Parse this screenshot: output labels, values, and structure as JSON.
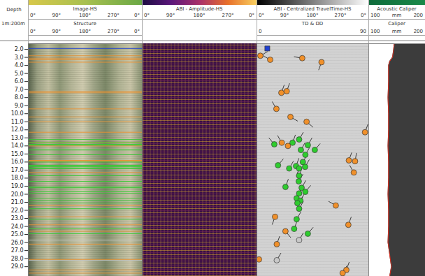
{
  "chart_data": {
    "type": "well_log",
    "depth_label": "Depth",
    "scale_label": "1m:200m",
    "ylim": [
      1.3,
      30.2
    ],
    "yticks": [
      {
        "value": 2,
        "label": "2.0"
      },
      {
        "value": 3,
        "label": "3.0"
      },
      {
        "value": 4,
        "label": "4.0"
      },
      {
        "value": 5,
        "label": "5.0"
      },
      {
        "value": 6,
        "label": "6.0"
      },
      {
        "value": 7,
        "label": "7.0"
      },
      {
        "value": 8,
        "label": "8.0"
      },
      {
        "value": 9,
        "label": "9.0"
      },
      {
        "value": 10,
        "label": "10.0"
      },
      {
        "value": 11,
        "label": "11.0"
      },
      {
        "value": 12,
        "label": "12.0"
      },
      {
        "value": 13,
        "label": "13.0"
      },
      {
        "value": 14,
        "label": "14.0"
      },
      {
        "value": 15,
        "label": "15.0"
      },
      {
        "value": 16,
        "label": "16.0"
      },
      {
        "value": 17,
        "label": "17.0"
      },
      {
        "value": 18,
        "label": "18.0"
      },
      {
        "value": 19,
        "label": "19.0"
      },
      {
        "value": 20,
        "label": "20.0"
      },
      {
        "value": 21,
        "label": "21.0"
      },
      {
        "value": 22,
        "label": "22.0"
      },
      {
        "value": 23,
        "label": "23.0"
      },
      {
        "value": 24,
        "label": "24.0"
      },
      {
        "value": 25,
        "label": "25.0"
      },
      {
        "value": 26,
        "label": "26.0"
      },
      {
        "value": 27,
        "label": "27.0"
      },
      {
        "value": 28,
        "label": "28.0"
      },
      {
        "value": 29,
        "label": "29.0"
      }
    ],
    "tracks": [
      {
        "title": "Image-HS",
        "xlim": [
          0,
          360
        ],
        "xticks": [
          {
            "value": 0,
            "label": "0°"
          },
          {
            "value": 90,
            "label": "90°"
          },
          {
            "value": 180,
            "label": "180°"
          },
          {
            "value": 270,
            "label": "270°"
          },
          {
            "value": 360,
            "label": "0°"
          }
        ],
        "subtitle": "Structure",
        "sublim": [
          0,
          360
        ],
        "subticks": [
          {
            "value": 0,
            "label": "0°"
          },
          {
            "value": 90,
            "label": "90°"
          },
          {
            "value": 180,
            "label": "180°"
          },
          {
            "value": 270,
            "label": "270°"
          },
          {
            "value": 360,
            "label": "0°"
          }
        ]
      },
      {
        "title": "ABI - Amplitude-HS",
        "xlim": [
          0,
          360
        ],
        "xticks": [
          {
            "value": 0,
            "label": "0°"
          },
          {
            "value": 90,
            "label": "90°"
          },
          {
            "value": 180,
            "label": "180°"
          },
          {
            "value": 270,
            "label": "270°"
          },
          {
            "value": 360,
            "label": "0°"
          }
        ]
      },
      {
        "title": "ABI - Centralized TravelTime-HS",
        "xlim": [
          0,
          360
        ],
        "xticks": [
          {
            "value": 0,
            "label": "0°"
          },
          {
            "value": 90,
            "label": "90°"
          },
          {
            "value": 180,
            "label": "180°"
          },
          {
            "value": 270,
            "label": "270°"
          },
          {
            "value": 360,
            "label": "0°"
          }
        ],
        "subtitle": "TD & DD",
        "sublim": [
          0,
          90
        ],
        "subticks": [
          0,
          90
        ]
      },
      {
        "title": "Acoustic Caliper",
        "xlim": [
          100,
          200
        ],
        "xticks": [
          100,
          200
        ],
        "unit": "mm",
        "subtitle": "Caliper",
        "sublim": [
          100,
          200
        ],
        "subticks": [
          100,
          200
        ],
        "subunit": "mm"
      }
    ],
    "series": [
      {
        "color": "#2040d0",
        "marker": "square",
        "depth": [
          1.9
        ],
        "dip": [
          8.4
        ]
      },
      {
        "color": "#f0902a",
        "marker": "circle",
        "depth": [
          2.8,
          3.3,
          3.1,
          3.6,
          7.4,
          7.2,
          9.4,
          10.4,
          11.0,
          12.3,
          13.6,
          14.0,
          15.8,
          15.9,
          17.3,
          21.4,
          22.8,
          23.8,
          24.6,
          26.2,
          28.1,
          29.4,
          29.8
        ],
        "dip": [
          2.8,
          10.7,
          36.5,
          52,
          19.7,
          24,
          15.7,
          27,
          40,
          87,
          20,
          25,
          74,
          79,
          78,
          63.5,
          14.6,
          73.6,
          23,
          16,
          1.7,
          72,
          69
        ],
        "azimuth": [
          60,
          300,
          280,
          200,
          20,
          20,
          330,
          120,
          130,
          20,
          330,
          40,
          20,
          10,
          330,
          300,
          200,
          20,
          140,
          20,
          300,
          20,
          30
        ]
      },
      {
        "color": "#2ecc2e",
        "marker": "circle",
        "depth": [
          13.2,
          13.6,
          13.8,
          13.9,
          14.5,
          14.5,
          15.1,
          16.0,
          16.4,
          16.5,
          16.6,
          16.8,
          16.8,
          17.7,
          18.4,
          19.1,
          19.2,
          19.7,
          19.9,
          20.5,
          20.8,
          21.1,
          21.8,
          23.1,
          24.3,
          24.9
        ],
        "dip": [
          34,
          28.7,
          14,
          41,
          35.4,
          46.6,
          39,
          37,
          17,
          31.5,
          38.8,
          26,
          34,
          34,
          33.7,
          23,
          36,
          39,
          34,
          32,
          35,
          32.6,
          34,
          32,
          30,
          41
        ],
        "azimuth": [
          30,
          20,
          320,
          30,
          30,
          40,
          30,
          30,
          40,
          20,
          30,
          30,
          200,
          20,
          30,
          20,
          30,
          40,
          20,
          30,
          30,
          40,
          30,
          30,
          20,
          40
        ]
      },
      {
        "color": "#c8c8c8",
        "marker": "circle",
        "depth": [
          25.7,
          28.2
        ],
        "dip": [
          34,
          16
        ],
        "azimuth": [
          30,
          30
        ]
      }
    ],
    "caliper": {
      "color": "#e03020",
      "depth": [
        1.3,
        2,
        3,
        3.5,
        4,
        6,
        8,
        10,
        12,
        14,
        16,
        18,
        20,
        22,
        24,
        26,
        27,
        28,
        29,
        30.2
      ],
      "values": [
        145,
        144,
        142,
        137,
        135,
        135,
        134,
        135,
        135,
        134,
        135,
        135,
        134,
        135,
        135,
        134,
        136,
        138,
        140,
        137
      ]
    }
  }
}
